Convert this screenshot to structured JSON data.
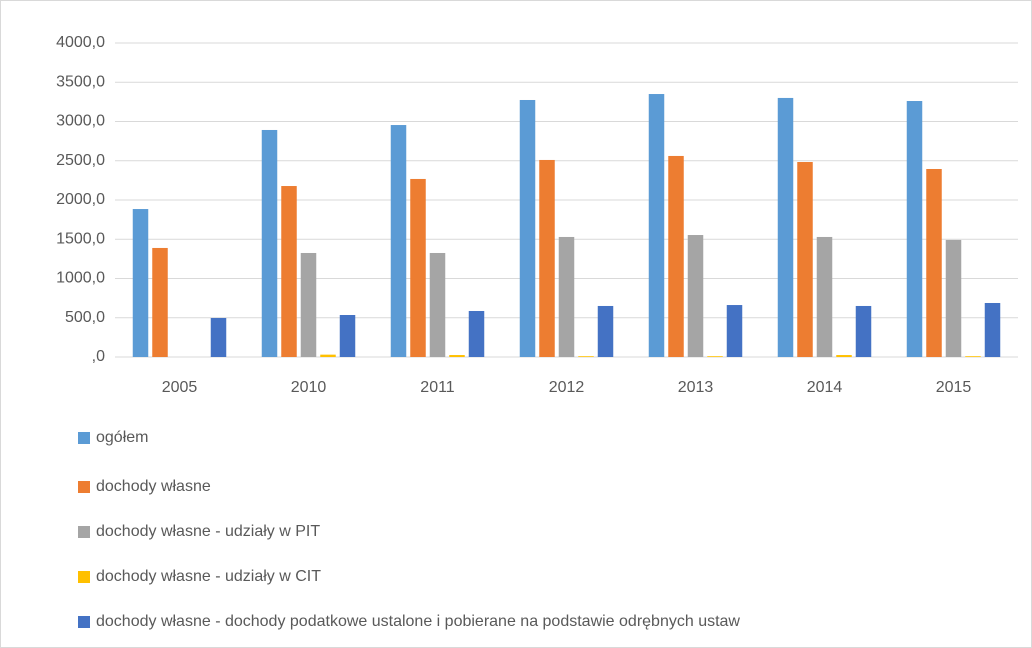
{
  "chart_data": {
    "type": "bar",
    "categories": [
      "2005",
      "2010",
      "2011",
      "2012",
      "2013",
      "2014",
      "2015"
    ],
    "series": [
      {
        "name": "ogółem",
        "color": "#5b9bd5",
        "values": [
          1885,
          2892,
          2955,
          3274,
          3350,
          3300,
          3261
        ]
      },
      {
        "name": "dochody własne",
        "color": "#ed7d31",
        "values": [
          1389,
          2178,
          2268,
          2510,
          2561,
          2484,
          2395
        ]
      },
      {
        "name": "dochody własne - udziały w PIT",
        "color": "#a5a5a5",
        "values": [
          0,
          1325,
          1325,
          1529,
          1554,
          1529,
          1491
        ]
      },
      {
        "name": "dochody własne - udziały w CIT",
        "color": "#ffc000",
        "values": [
          0,
          30,
          25,
          10,
          10,
          25,
          10
        ]
      },
      {
        "name": "dochody własne - dochody podatkowe ustalone i pobierane na podstawie odrębnych ustaw",
        "color": "#4472c4",
        "values": [
          497,
          535,
          586,
          650,
          662,
          650,
          688
        ]
      }
    ],
    "ylim": [
      0,
      4000
    ],
    "yticks": [
      {
        "value": 0,
        "label": ",0"
      },
      {
        "value": 500,
        "label": "500,0"
      },
      {
        "value": 1000,
        "label": "1000,0"
      },
      {
        "value": 1500,
        "label": "1500,0"
      },
      {
        "value": 2000,
        "label": "2000,0"
      },
      {
        "value": 2500,
        "label": "2500,0"
      },
      {
        "value": 3000,
        "label": "3000,0"
      },
      {
        "value": 3500,
        "label": "3500,0"
      },
      {
        "value": 4000,
        "label": "4000,0"
      }
    ],
    "grid": true,
    "legend": "bottom"
  }
}
